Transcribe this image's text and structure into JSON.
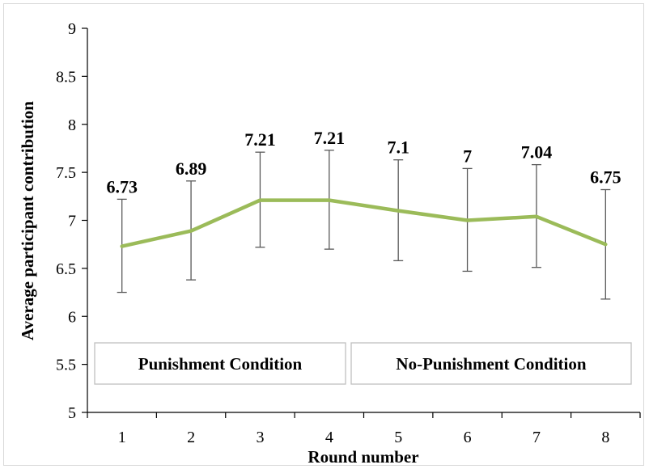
{
  "chart_data": {
    "type": "line",
    "title": "",
    "xlabel": "Round number",
    "ylabel": "Average participant contribution",
    "categories": [
      "1",
      "2",
      "3",
      "4",
      "5",
      "6",
      "7",
      "8"
    ],
    "ylim": [
      5,
      9
    ],
    "yticks": [
      "5",
      "5.5",
      "6",
      "6.5",
      "7",
      "7.5",
      "8",
      "8.5",
      "9"
    ],
    "grid": false,
    "series": [
      {
        "values": [
          6.73,
          6.89,
          7.21,
          7.21,
          7.1,
          7.0,
          7.04,
          6.75
        ],
        "data_labels": [
          "6.73",
          "6.89",
          "7.21",
          "7.21",
          "7.1",
          "7",
          "7.04",
          "6.75"
        ],
        "error_low": [
          6.25,
          6.38,
          6.72,
          6.7,
          6.58,
          6.47,
          6.51,
          6.18
        ],
        "error_high": [
          7.22,
          7.41,
          7.71,
          7.73,
          7.63,
          7.54,
          7.58,
          7.32
        ],
        "color": "#9bbb59"
      }
    ],
    "annotations": [
      {
        "text": "Punishment Condition",
        "rounds": "1-4"
      },
      {
        "text": "No-Punishment Condition",
        "rounds": "5-8"
      }
    ]
  }
}
